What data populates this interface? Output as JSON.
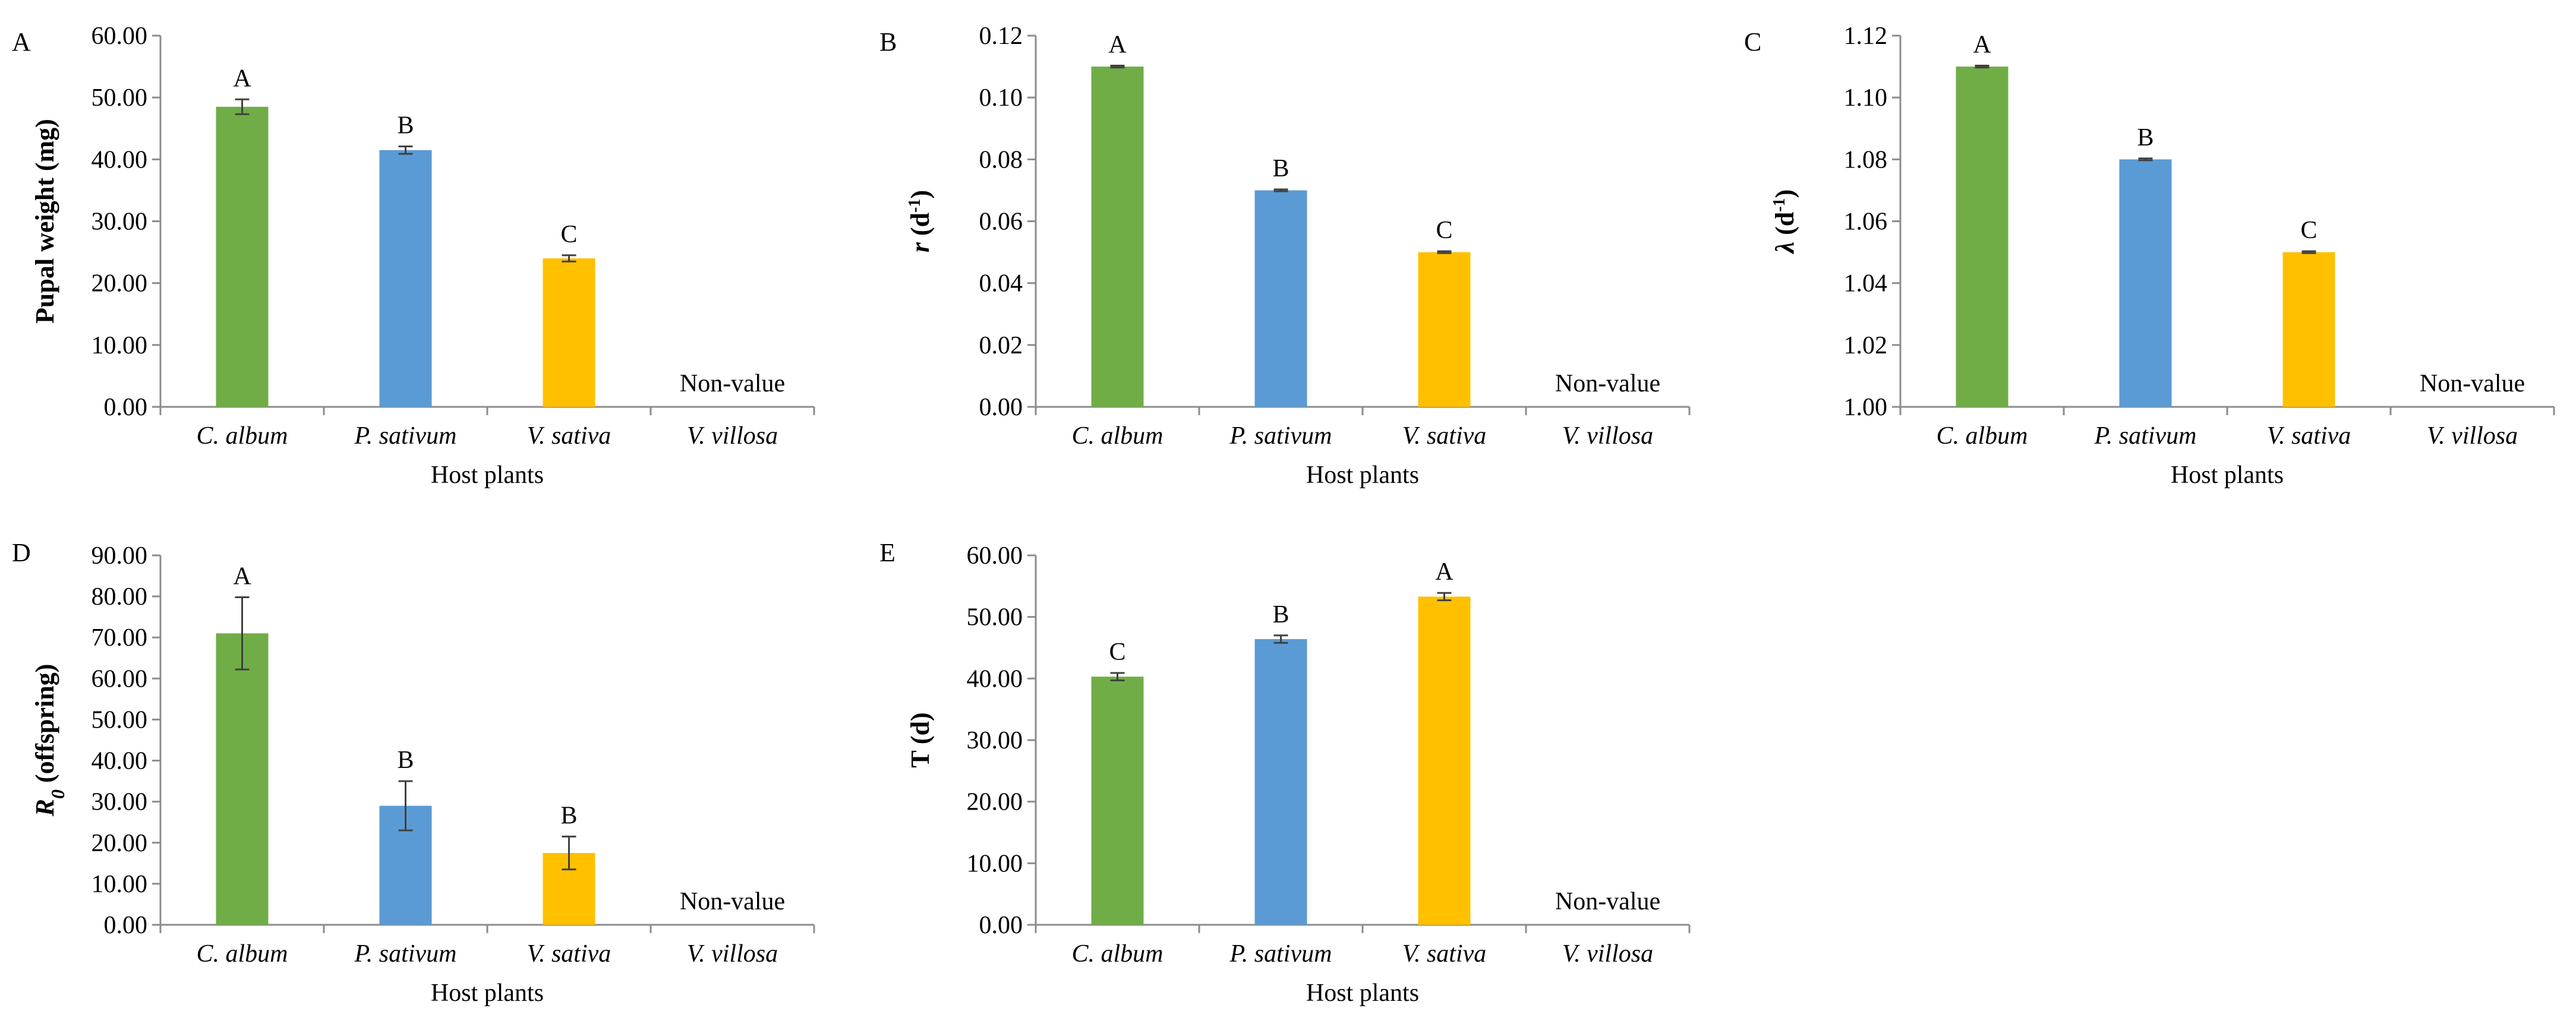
{
  "chart_data": [
    {
      "panel_label": "A",
      "type": "bar",
      "categories": [
        "C. album",
        "P. sativum",
        "V. sativa",
        "V. villosa"
      ],
      "values": [
        48.5,
        41.5,
        24.0,
        null
      ],
      "errors": [
        1.2,
        0.6,
        0.5,
        null
      ],
      "letters": [
        "A",
        "B",
        "C",
        ""
      ],
      "colors": [
        "#70AD47",
        "#5B9BD5",
        "#FFC000",
        null
      ],
      "missing_label": "Non-value",
      "xlabel": "Host plants",
      "ylabel": "Pupal weight (mg)",
      "ylabel_parts": [
        {
          "t": "Pupal weight (mg)"
        }
      ],
      "ylim": [
        0,
        60
      ],
      "yticks": [
        "0.00",
        "10.00",
        "20.00",
        "30.00",
        "40.00",
        "50.00",
        "60.00"
      ]
    },
    {
      "panel_label": "B",
      "type": "bar",
      "categories": [
        "C. album",
        "P. sativum",
        "V. sativa",
        "V. villosa"
      ],
      "values": [
        0.11,
        0.07,
        0.05,
        null
      ],
      "errors": [
        0.0003,
        0.0003,
        0.0003,
        null
      ],
      "letters": [
        "A",
        "B",
        "C",
        ""
      ],
      "colors": [
        "#70AD47",
        "#5B9BD5",
        "#FFC000",
        null
      ],
      "missing_label": "Non-value",
      "xlabel": "Host plants",
      "ylabel": "r (d-1)",
      "ylabel_parts": [
        {
          "t": "r",
          "i": true
        },
        {
          "t": " (d"
        },
        {
          "t": "-1",
          "sup": true
        },
        {
          "t": ")"
        }
      ],
      "ylim": [
        0,
        0.12
      ],
      "yticks": [
        "0.00",
        "0.02",
        "0.04",
        "0.06",
        "0.08",
        "0.10",
        "0.12"
      ]
    },
    {
      "panel_label": "C",
      "type": "bar",
      "categories": [
        "C. album",
        "P. sativum",
        "V. sativa",
        "V. villosa"
      ],
      "values": [
        1.11,
        1.08,
        1.05,
        null
      ],
      "errors": [
        0.0003,
        0.0003,
        0.0003,
        null
      ],
      "letters": [
        "A",
        "B",
        "C",
        ""
      ],
      "colors": [
        "#70AD47",
        "#5B9BD5",
        "#FFC000",
        null
      ],
      "missing_label": "Non-value",
      "xlabel": "Host plants",
      "ylabel": "λ (d-1)",
      "ylabel_parts": [
        {
          "t": "λ",
          "i": true
        },
        {
          "t": " (d"
        },
        {
          "t": "-1",
          "sup": true
        },
        {
          "t": ")"
        }
      ],
      "ylim": [
        1.0,
        1.12
      ],
      "yticks": [
        "1.00",
        "1.02",
        "1.04",
        "1.06",
        "1.08",
        "1.10",
        "1.12"
      ]
    },
    {
      "panel_label": "D",
      "type": "bar",
      "categories": [
        "C. album",
        "P. sativum",
        "V. sativa",
        "V. villosa"
      ],
      "values": [
        71.0,
        29.0,
        17.5,
        null
      ],
      "errors": [
        8.8,
        6.0,
        4.0,
        null
      ],
      "letters": [
        "A",
        "B",
        "B",
        ""
      ],
      "colors": [
        "#70AD47",
        "#5B9BD5",
        "#FFC000",
        null
      ],
      "missing_label": "Non-value",
      "xlabel": "Host plants",
      "ylabel": "R0 (offspring)",
      "ylabel_parts": [
        {
          "t": "R",
          "i": true
        },
        {
          "t": "0",
          "sub": true,
          "i": true
        },
        {
          "t": " (offspring)"
        }
      ],
      "ylim": [
        0,
        90
      ],
      "yticks": [
        "0.00",
        "10.00",
        "20.00",
        "30.00",
        "40.00",
        "50.00",
        "60.00",
        "70.00",
        "80.00",
        "90.00"
      ]
    },
    {
      "panel_label": "E",
      "type": "bar",
      "categories": [
        "C. album",
        "P. sativum",
        "V. sativa",
        "V. villosa"
      ],
      "values": [
        40.3,
        46.4,
        53.3,
        null
      ],
      "errors": [
        0.6,
        0.6,
        0.6,
        null
      ],
      "letters": [
        "C",
        "B",
        "A",
        ""
      ],
      "colors": [
        "#70AD47",
        "#5B9BD5",
        "#FFC000",
        null
      ],
      "missing_label": "Non-value",
      "xlabel": "Host plants",
      "ylabel": "T (d)",
      "ylabel_parts": [
        {
          "t": "T (d)"
        }
      ],
      "ylim": [
        0,
        60
      ],
      "yticks": [
        "0.00",
        "10.00",
        "20.00",
        "30.00",
        "40.00",
        "50.00",
        "60.00"
      ]
    }
  ]
}
